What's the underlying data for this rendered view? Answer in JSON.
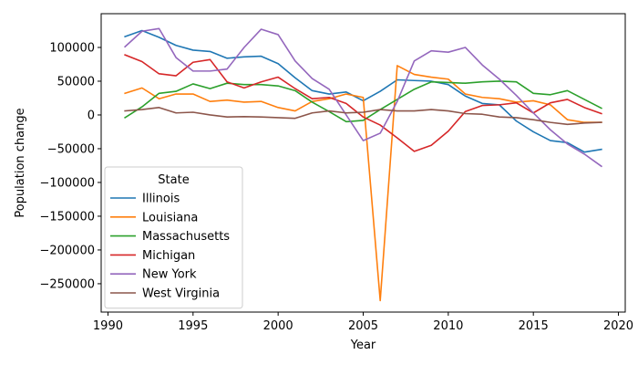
{
  "chart_data": {
    "type": "line",
    "xlabel": "Year",
    "ylabel": "Population change",
    "xlim": [
      1989.6,
      2020.4
    ],
    "ylim": [
      -292000,
      150000
    ],
    "xticks": [
      1990,
      1995,
      2000,
      2005,
      2010,
      2015,
      2020
    ],
    "xtick_labels": [
      "1990",
      "1995",
      "2000",
      "2005",
      "2010",
      "2015",
      "2020"
    ],
    "yticks": [
      100000,
      50000,
      0,
      -50000,
      -100000,
      -150000,
      -200000,
      -250000
    ],
    "ytick_labels": [
      "100000",
      "50000",
      "0",
      "−50000",
      "−100000",
      "−150000",
      "−200000",
      "−250000"
    ],
    "grid": false,
    "legend": {
      "title": "State",
      "placement": "lower-left"
    },
    "x": [
      1991,
      1992,
      1993,
      1994,
      1995,
      1996,
      1997,
      1998,
      1999,
      2000,
      2001,
      2002,
      2003,
      2004,
      2005,
      2006,
      2007,
      2008,
      2009,
      2010,
      2011,
      2012,
      2013,
      2014,
      2015,
      2016,
      2017,
      2018,
      2019
    ],
    "series": [
      {
        "name": "Illinois",
        "color": "#1f77b4",
        "values": [
          116000,
          125000,
          115000,
          103000,
          96000,
          94000,
          84000,
          86000,
          87000,
          76000,
          55000,
          36000,
          31000,
          34000,
          21000,
          35000,
          52000,
          51000,
          50000,
          45000,
          28000,
          17000,
          15000,
          -9000,
          -25000,
          -38000,
          -41000,
          -55000,
          -51000
        ]
      },
      {
        "name": "Louisiana",
        "color": "#ff7f0e",
        "values": [
          32000,
          40000,
          24000,
          31000,
          31000,
          20000,
          22000,
          19000,
          20000,
          11000,
          6000,
          20000,
          24000,
          31000,
          26000,
          -275000,
          73000,
          60000,
          56000,
          53000,
          31000,
          26000,
          24000,
          19000,
          21000,
          15000,
          -7000,
          -11000,
          -11000
        ]
      },
      {
        "name": "Massachusetts",
        "color": "#2ca02c",
        "values": [
          -4000,
          12000,
          32000,
          35000,
          46000,
          39000,
          47000,
          45000,
          45000,
          43000,
          36000,
          19000,
          5000,
          -10000,
          -8000,
          8000,
          23000,
          38000,
          49000,
          48000,
          47000,
          49000,
          50000,
          49000,
          32000,
          30000,
          36000,
          23000,
          10000
        ]
      },
      {
        "name": "Michigan",
        "color": "#d62728",
        "values": [
          89000,
          79000,
          61000,
          58000,
          78000,
          82000,
          49000,
          40000,
          49000,
          56000,
          39000,
          24000,
          26000,
          17000,
          -3000,
          -15000,
          -34000,
          -54000,
          -45000,
          -24000,
          5000,
          14000,
          15000,
          18000,
          3000,
          18000,
          23000,
          11000,
          2000
        ]
      },
      {
        "name": "New York",
        "color": "#9467bd",
        "values": [
          101000,
          124000,
          128000,
          85000,
          65000,
          65000,
          68000,
          100000,
          127000,
          119000,
          80000,
          54000,
          38000,
          0,
          -38000,
          -27000,
          20000,
          80000,
          95000,
          93000,
          100000,
          74000,
          53000,
          29000,
          3000,
          -22000,
          -43000,
          -58000,
          -76000
        ]
      },
      {
        "name": "West Virginia",
        "color": "#8c564b",
        "values": [
          6000,
          8000,
          11000,
          3000,
          4000,
          0,
          -3000,
          -2500,
          -3000,
          -4000,
          -5000,
          3000,
          6000,
          3000,
          4000,
          8000,
          6000,
          6000,
          8000,
          6000,
          2000,
          1000,
          -3000,
          -4000,
          -7000,
          -11000,
          -14000,
          -12000,
          -11000
        ]
      }
    ]
  }
}
